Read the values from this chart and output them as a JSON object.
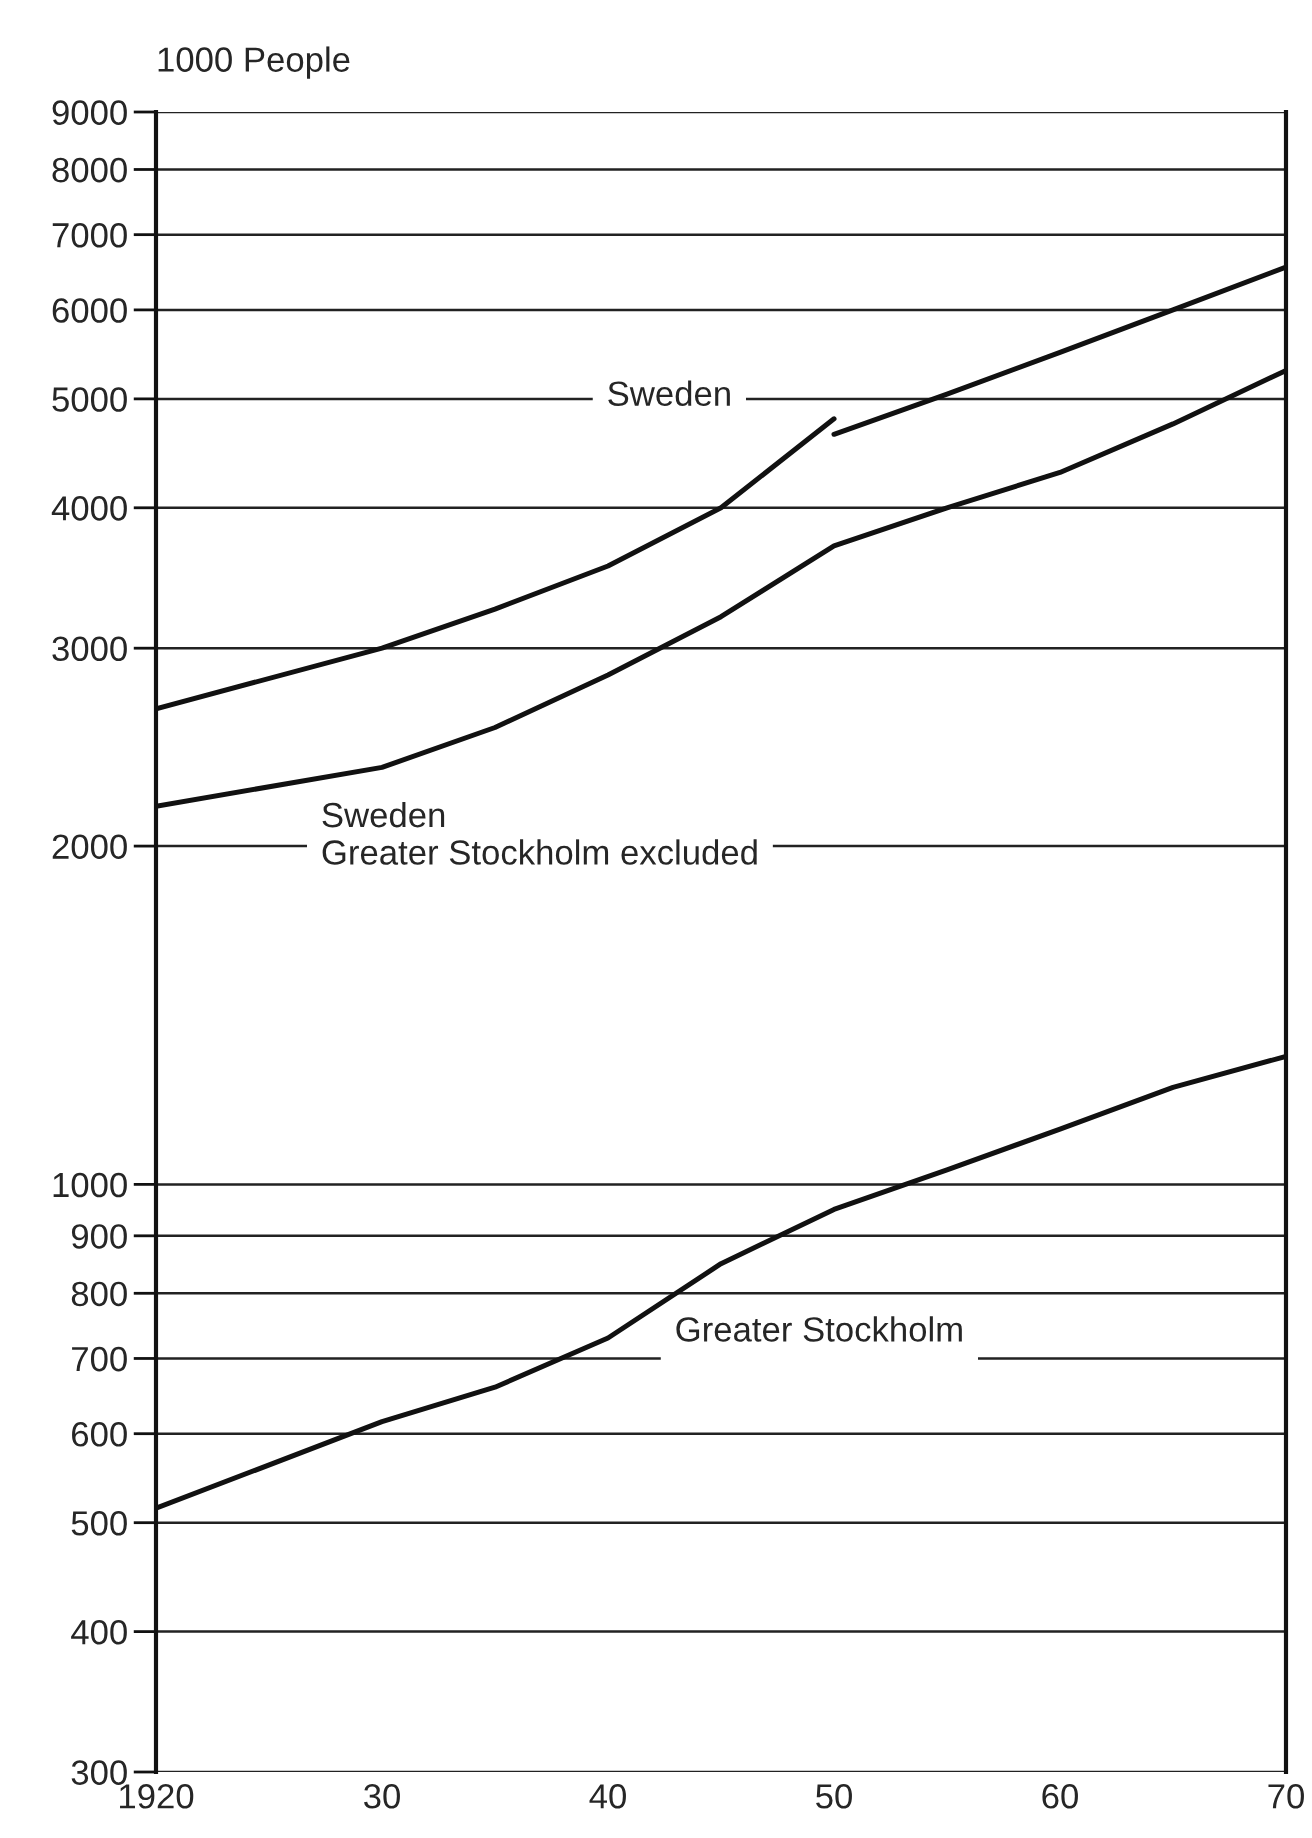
{
  "chart_data": {
    "type": "line",
    "ylabel": "1000 People",
    "x": [
      1920,
      1930,
      1935,
      1940,
      1945,
      1950,
      1955,
      1960,
      1965,
      1970
    ],
    "series": [
      {
        "name": "Sweden",
        "color": "#111111",
        "x": [
          1920,
          1930,
          1935,
          1940,
          1945,
          1950
        ],
        "values": [
          2650,
          3000,
          3250,
          3550,
          4000,
          4800
        ]
      },
      {
        "name": "Sweden\nGreater Stockholm excluded",
        "color": "#111111",
        "values": [
          2170,
          2350,
          2550,
          2840,
          3200,
          3700,
          4000,
          4300,
          4750,
          5300
        ]
      },
      {
        "color": "#111111",
        "x": [
          1950,
          1955,
          1960,
          1965,
          1970
        ],
        "values": [
          4650,
          5050,
          5500,
          6000,
          6550
        ]
      },
      {
        "name": "Greater Stockholm",
        "color": "#111111",
        "values": [
          515,
          615,
          660,
          730,
          850,
          950,
          1030,
          1120,
          1220,
          1300
        ]
      }
    ],
    "xlim": [
      1920,
      1970
    ],
    "xticks": [
      {
        "value": 1920,
        "label": "1920"
      },
      {
        "value": 1930,
        "label": "30"
      },
      {
        "value": 1940,
        "label": "40"
      },
      {
        "value": 1950,
        "label": "50"
      },
      {
        "value": 1960,
        "label": "60"
      },
      {
        "value": 1970,
        "label": "70"
      }
    ],
    "ylim": [
      300,
      9000
    ],
    "yticks": [
      300,
      400,
      500,
      600,
      700,
      800,
      900,
      1000,
      2000,
      3000,
      4000,
      5000,
      6000,
      7000,
      8000,
      9000
    ],
    "log": true,
    "grid": "y",
    "legend": false,
    "marker": "none",
    "line_style": "solid"
  }
}
